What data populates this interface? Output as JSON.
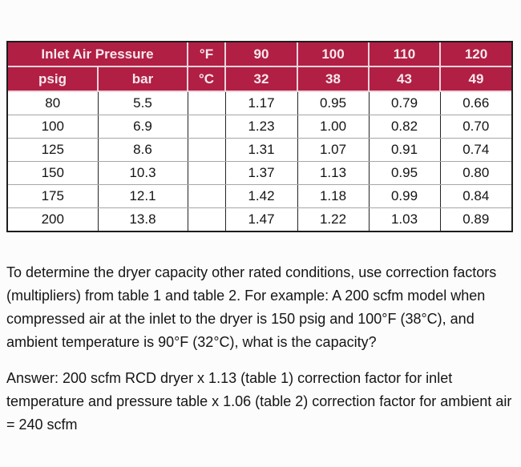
{
  "colors": {
    "accent": "#B11F44",
    "header_text": "#F7E9ED",
    "grid_dark": "#242424",
    "grid_light": "#A6A6A6"
  },
  "table1": {
    "header_row1": [
      "Inlet Air Pressure",
      "°F",
      "90",
      "100",
      "110",
      "120"
    ],
    "header_row2": [
      "psig",
      "bar",
      "°C",
      "32",
      "38",
      "43",
      "49"
    ],
    "rows": [
      [
        "80",
        "5.5",
        "",
        "1.17",
        "0.95",
        "0.79",
        "0.66"
      ],
      [
        "100",
        "6.9",
        "",
        "1.23",
        "1.00",
        "0.82",
        "0.70"
      ],
      [
        "125",
        "8.6",
        "",
        "1.31",
        "1.07",
        "0.91",
        "0.74"
      ],
      [
        "150",
        "10.3",
        "",
        "1.37",
        "1.13",
        "0.95",
        "0.80"
      ],
      [
        "175",
        "12.1",
        "",
        "1.42",
        "1.18",
        "0.99",
        "0.84"
      ],
      [
        "200",
        "13.8",
        "",
        "1.47",
        "1.22",
        "1.03",
        "0.89"
      ]
    ]
  },
  "paragraphs": {
    "example": "To determine the dryer capacity other rated conditions, use correction factors\n(multipliers) from table 1 and table 2. For example: A 200 scfm model when\ncompressed air at the inlet to the dryer is 150 psig and 100°F (38°C), and\nambient temperature is 90°F (32°C), what is the capacity?",
    "answer": "Answer: 200 scfm RCD dryer x 1.13 (table 1) correction factor for inlet\ntemperature and pressure table x 1.06 (table 2) correction factor for ambient air\n= 240 scfm"
  }
}
